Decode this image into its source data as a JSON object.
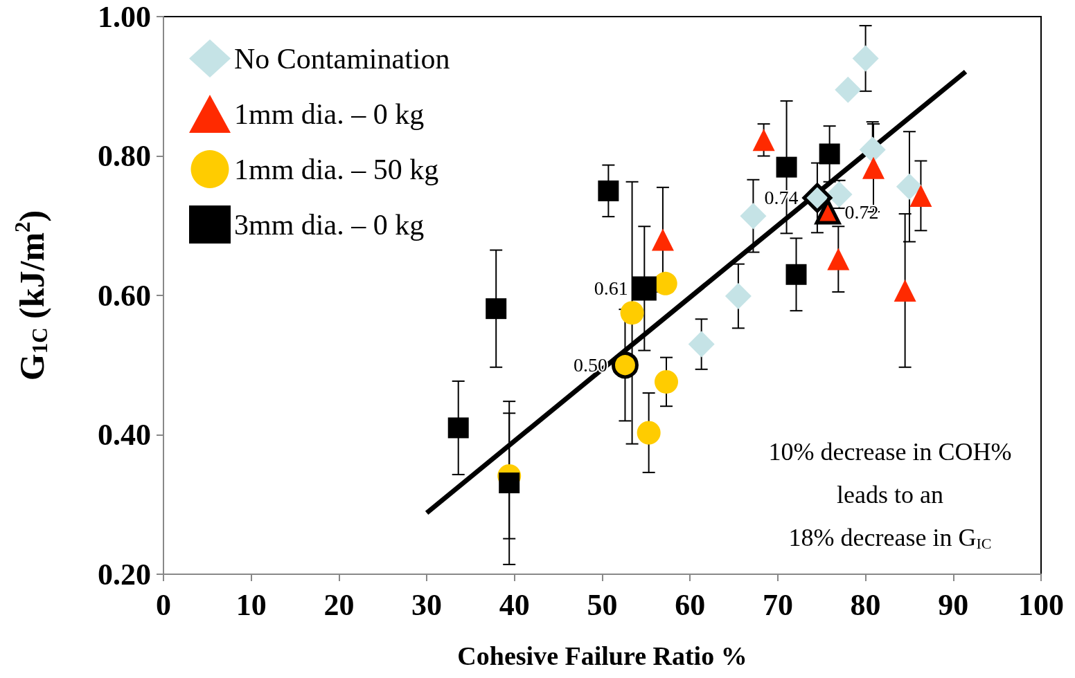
{
  "chart_data": {
    "type": "scatter",
    "xlabel": "Cohesive Failure Ratio %",
    "ylabel": "G$_{1C}$ (kJ/m$^{2}$)",
    "xlim": [
      0,
      100
    ],
    "xticks": [
      0,
      10,
      20,
      30,
      40,
      50,
      60,
      70,
      80,
      90,
      100
    ],
    "ylim": [
      0.2,
      1.0
    ],
    "yticks": [
      {
        "value": 0.2,
        "label": "0.20"
      },
      {
        "value": 0.4,
        "label": "0.40"
      },
      {
        "value": 0.6,
        "label": "0.60"
      },
      {
        "value": 0.8,
        "label": "0.80"
      },
      {
        "value": 1.0,
        "label": "1.00"
      }
    ],
    "grid": false,
    "legend": "top left",
    "annotations": [
      "10% decrease in COH%\nleads to an\n18% decrease in G$_{IC}$"
    ],
    "series": [
      {
        "name": "No Contamination",
        "color": "#c5e3e6",
        "marker": "diamond",
        "x": [
          80.0,
          78.0,
          80.8,
          77.0,
          85.0,
          67.2,
          65.5,
          61.3
        ],
        "values": [
          0.94,
          0.895,
          0.809,
          0.745,
          0.756,
          0.714,
          0.599,
          0.53
        ],
        "errors": [
          0.047,
          null,
          0.04,
          0.02,
          0.079,
          0.052,
          0.046,
          0.036
        ]
      },
      {
        "name": "1mm dia. – 0 kg",
        "color": "#ff2a00",
        "marker": "triangle",
        "x": [
          68.4,
          56.9,
          80.9,
          86.3,
          76.9,
          84.5
        ],
        "values": [
          0.823,
          0.68,
          0.783,
          0.743,
          0.652,
          0.607
        ],
        "errors": [
          0.023,
          0.075,
          0.063,
          0.05,
          0.047,
          0.11
        ]
      },
      {
        "name": "1mm dia. – 50 kg",
        "color": "#ffcc00",
        "marker": "circle",
        "x": [
          57.2,
          53.4,
          57.3,
          55.3,
          39.4
        ],
        "values": [
          0.617,
          0.575,
          0.476,
          0.403,
          0.341
        ],
        "errors": [
          null,
          0.188,
          0.035,
          0.057,
          0.09
        ]
      },
      {
        "name": "3mm dia. – 0 kg",
        "color": "#000000",
        "marker": "square",
        "x": [
          50.7,
          37.9,
          33.6,
          39.4,
          72.1,
          71.0,
          75.9
        ],
        "values": [
          0.75,
          0.581,
          0.41,
          0.331,
          0.63,
          0.784,
          0.803
        ],
        "errors": [
          0.037,
          0.084,
          0.067,
          0.117,
          0.052,
          0.095,
          0.04
        ]
      },
      {
        "color": "#c5e3e6",
        "marker": "diamond",
        "x": [
          74.5
        ],
        "values": [
          0.74
        ],
        "value_labels": [
          "0.74"
        ],
        "errors": [
          0.05
        ]
      },
      {
        "color": "#ff2a00",
        "marker": "triangle",
        "x": [
          75.7
        ],
        "values": [
          0.72
        ],
        "value_labels": [
          "0.72"
        ]
      },
      {
        "color": "#000000",
        "marker": "square",
        "x": [
          54.8
        ],
        "values": [
          0.61
        ],
        "value_labels": [
          "0.61"
        ],
        "errors": [
          0.089
        ]
      },
      {
        "color": "#ffcc00",
        "marker": "circle",
        "x": [
          52.6
        ],
        "values": [
          0.5
        ],
        "value_labels": [
          "0.50"
        ],
        "errors": [
          0.08
        ]
      },
      {
        "type": "line",
        "color": "#000000",
        "marker": "none",
        "x": [
          30.0,
          91.4
        ],
        "values": [
          0.288,
          0.921
        ]
      }
    ]
  }
}
